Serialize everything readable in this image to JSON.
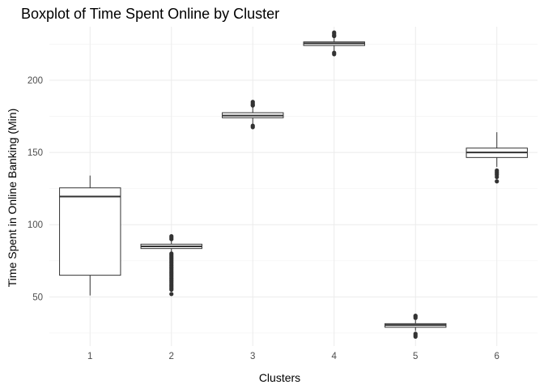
{
  "chart_data": {
    "type": "boxplot",
    "title": "Boxplot of Time Spent Online by Cluster",
    "xlabel": "Clusters",
    "ylabel": "Time Spent in Online Banking (Min)",
    "categories": [
      "1",
      "2",
      "3",
      "4",
      "5",
      "6"
    ],
    "ylim": [
      16,
      237
    ],
    "yticks": [
      50,
      100,
      150,
      200
    ],
    "grid": true,
    "boxes": [
      {
        "category": "1",
        "whisker_low": 51,
        "q1": 65,
        "median": 119.5,
        "q3": 125.5,
        "whisker_high": 134,
        "outliers": []
      },
      {
        "category": "2",
        "whisker_low": 81,
        "q1": 83.5,
        "median": 85,
        "q3": 86.5,
        "whisker_high": 89,
        "outliers": [
          52,
          55,
          56,
          57,
          58,
          59,
          60,
          61,
          62,
          63,
          64,
          65,
          66,
          67,
          68,
          69,
          70,
          71,
          72,
          73,
          74,
          75,
          76,
          77,
          78,
          79,
          80,
          90,
          91,
          92
        ]
      },
      {
        "category": "3",
        "whisker_low": 169.5,
        "q1": 174,
        "median": 175.5,
        "q3": 177.5,
        "whisker_high": 181.5,
        "outliers": [
          167.5,
          168.5,
          182.5,
          183,
          184,
          185
        ]
      },
      {
        "category": "4",
        "whisker_low": 220,
        "q1": 224,
        "median": 225.5,
        "q3": 226.5,
        "whisker_high": 229,
        "outliers": [
          218,
          219,
          230.5,
          231,
          232,
          233
        ]
      },
      {
        "category": "5",
        "whisker_low": 26.5,
        "q1": 29,
        "median": 30.5,
        "q3": 31.5,
        "whisker_high": 34,
        "outliers": [
          22.5,
          23.5,
          24.5,
          35.5,
          36.5,
          37
        ]
      },
      {
        "category": "6",
        "whisker_low": 140,
        "q1": 146.5,
        "median": 150,
        "q3": 153,
        "whisker_high": 164,
        "outliers": [
          130,
          133,
          134.5,
          135.5,
          136.5,
          137.5
        ]
      }
    ]
  }
}
